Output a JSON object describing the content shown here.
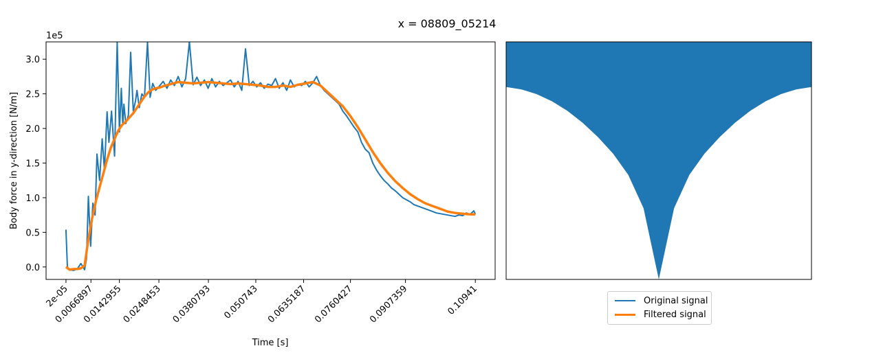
{
  "figure": {
    "title": "x = 08809_05214"
  },
  "chart_data": [
    {
      "type": "line",
      "xlabel": "Time [s]",
      "ylabel": "Body force in y-direction [N/m]",
      "y_scale_note": "1e5",
      "xlim": [
        -0.0053,
        0.1147
      ],
      "ylim": [
        -0.18,
        3.25
      ],
      "x_tick_values": [
        2e-05,
        0.0066897,
        0.0142955,
        0.0248453,
        0.0380793,
        0.050743,
        0.0635187,
        0.0760427,
        0.0907359,
        0.10941
      ],
      "x_tick_labels": [
        "2e-05",
        "0.0066897",
        "0.0142955",
        "0.0248453",
        "0.0380793",
        "0.050743",
        "0.0635187",
        "0.0760427",
        "0.0907359",
        "0.10941"
      ],
      "y_tick_values": [
        0.0,
        0.5,
        1.0,
        1.5,
        2.0,
        2.5,
        3.0
      ],
      "y_tick_labels": [
        "0.0",
        "0.5",
        "1.0",
        "1.5",
        "2.0",
        "2.5",
        "3.0"
      ],
      "grid": false,
      "colors": {
        "original": "#1f77b4",
        "filtered": "#ff7f0e"
      },
      "series": [
        {
          "name": "Original signal",
          "x": [
            2e-05,
            0.0004,
            0.001,
            0.002,
            0.003,
            0.004,
            0.005,
            0.0055,
            0.006,
            0.0066,
            0.0072,
            0.0078,
            0.0083,
            0.009,
            0.0097,
            0.0103,
            0.011,
            0.0115,
            0.0122,
            0.013,
            0.0137,
            0.0143,
            0.0148,
            0.0152,
            0.0155,
            0.016,
            0.0167,
            0.0173,
            0.018,
            0.0186,
            0.019,
            0.0196,
            0.0203,
            0.021,
            0.0218,
            0.0225,
            0.0232,
            0.024,
            0.0248,
            0.026,
            0.027,
            0.028,
            0.029,
            0.03,
            0.031,
            0.032,
            0.033,
            0.034,
            0.035,
            0.036,
            0.037,
            0.038,
            0.039,
            0.04,
            0.041,
            0.042,
            0.043,
            0.044,
            0.045,
            0.046,
            0.047,
            0.048,
            0.049,
            0.05,
            0.051,
            0.052,
            0.053,
            0.054,
            0.055,
            0.056,
            0.057,
            0.058,
            0.059,
            0.06,
            0.061,
            0.062,
            0.063,
            0.064,
            0.065,
            0.066,
            0.067,
            0.068,
            0.069,
            0.07,
            0.071,
            0.072,
            0.073,
            0.074,
            0.075,
            0.076,
            0.077,
            0.078,
            0.079,
            0.08,
            0.081,
            0.082,
            0.083,
            0.084,
            0.085,
            0.086,
            0.087,
            0.088,
            0.089,
            0.09,
            0.091,
            0.092,
            0.093,
            0.094,
            0.095,
            0.096,
            0.097,
            0.098,
            0.099,
            0.1,
            0.101,
            0.102,
            0.103,
            0.104,
            0.105,
            0.106,
            0.107,
            0.108,
            0.109,
            0.1094
          ],
          "values": [
            0.54,
            0.0,
            -0.04,
            -0.05,
            -0.03,
            0.05,
            -0.04,
            0.12,
            1.02,
            0.3,
            0.92,
            0.75,
            1.63,
            1.25,
            1.85,
            1.4,
            2.24,
            1.8,
            2.25,
            1.6,
            3.25,
            1.95,
            2.58,
            2.05,
            2.35,
            2.07,
            2.19,
            3.1,
            2.25,
            2.4,
            2.55,
            2.3,
            2.5,
            2.45,
            3.25,
            2.45,
            2.65,
            2.55,
            2.6,
            2.68,
            2.58,
            2.7,
            2.62,
            2.75,
            2.6,
            2.72,
            3.25,
            2.63,
            2.74,
            2.62,
            2.7,
            2.58,
            2.72,
            2.6,
            2.68,
            2.62,
            2.66,
            2.7,
            2.6,
            2.68,
            2.55,
            3.15,
            2.62,
            2.68,
            2.6,
            2.66,
            2.58,
            2.64,
            2.62,
            2.72,
            2.58,
            2.66,
            2.55,
            2.7,
            2.6,
            2.64,
            2.62,
            2.68,
            2.6,
            2.66,
            2.75,
            2.62,
            2.55,
            2.5,
            2.45,
            2.4,
            2.35,
            2.25,
            2.18,
            2.1,
            2.02,
            1.95,
            1.8,
            1.7,
            1.65,
            1.5,
            1.4,
            1.32,
            1.25,
            1.2,
            1.14,
            1.1,
            1.05,
            1.0,
            0.97,
            0.94,
            0.9,
            0.88,
            0.86,
            0.84,
            0.82,
            0.8,
            0.78,
            0.77,
            0.76,
            0.75,
            0.74,
            0.73,
            0.75,
            0.74,
            0.78,
            0.76,
            0.81,
            0.76
          ]
        },
        {
          "name": "Filtered signal",
          "x": [
            2e-05,
            0.001,
            0.002,
            0.003,
            0.004,
            0.005,
            0.006,
            0.007,
            0.008,
            0.009,
            0.01,
            0.011,
            0.012,
            0.013,
            0.014,
            0.015,
            0.016,
            0.017,
            0.018,
            0.019,
            0.02,
            0.021,
            0.022,
            0.023,
            0.024,
            0.025,
            0.026,
            0.028,
            0.03,
            0.032,
            0.034,
            0.036,
            0.038,
            0.04,
            0.042,
            0.044,
            0.046,
            0.048,
            0.05,
            0.052,
            0.054,
            0.056,
            0.058,
            0.06,
            0.062,
            0.064,
            0.066,
            0.068,
            0.07,
            0.072,
            0.074,
            0.076,
            0.078,
            0.08,
            0.082,
            0.084,
            0.086,
            0.088,
            0.09,
            0.092,
            0.094,
            0.096,
            0.098,
            0.1,
            0.102,
            0.104,
            0.106,
            0.108,
            0.1094
          ],
          "values": [
            0.0,
            -0.04,
            -0.03,
            -0.03,
            -0.02,
            0.02,
            0.4,
            0.7,
            0.95,
            1.15,
            1.35,
            1.55,
            1.72,
            1.85,
            1.97,
            2.05,
            2.1,
            2.16,
            2.22,
            2.3,
            2.38,
            2.46,
            2.52,
            2.56,
            2.58,
            2.59,
            2.61,
            2.64,
            2.67,
            2.66,
            2.65,
            2.66,
            2.67,
            2.66,
            2.65,
            2.64,
            2.65,
            2.64,
            2.63,
            2.62,
            2.6,
            2.6,
            2.62,
            2.6,
            2.63,
            2.65,
            2.67,
            2.62,
            2.52,
            2.42,
            2.32,
            2.18,
            2.02,
            1.84,
            1.66,
            1.5,
            1.36,
            1.24,
            1.14,
            1.05,
            0.98,
            0.92,
            0.88,
            0.84,
            0.8,
            0.78,
            0.77,
            0.76,
            0.76
          ]
        }
      ]
    },
    {
      "type": "area",
      "shape": "v-notch",
      "color": "#1f77b4",
      "xlim": [
        0,
        1
      ],
      "ylim": [
        0,
        1
      ],
      "x": [
        0.0,
        0.05,
        0.1,
        0.15,
        0.2,
        0.25,
        0.3,
        0.35,
        0.4,
        0.45,
        0.5,
        0.55,
        0.6,
        0.65,
        0.7,
        0.75,
        0.8,
        0.85,
        0.9,
        0.95,
        1.0
      ],
      "lower": [
        0.81,
        0.8,
        0.78,
        0.75,
        0.71,
        0.66,
        0.6,
        0.53,
        0.44,
        0.3,
        0.0,
        0.3,
        0.44,
        0.53,
        0.6,
        0.66,
        0.71,
        0.75,
        0.78,
        0.8,
        0.81
      ],
      "upper": [
        1.0,
        1.0,
        1.0,
        1.0,
        1.0,
        1.0,
        1.0,
        1.0,
        1.0,
        1.0,
        1.0,
        1.0,
        1.0,
        1.0,
        1.0,
        1.0,
        1.0,
        1.0,
        1.0,
        1.0,
        1.0
      ],
      "axis_ticks": false
    }
  ],
  "legend": {
    "items": [
      {
        "label": "Original signal",
        "color": "#1f77b4",
        "style": "thin"
      },
      {
        "label": "Filtered signal",
        "color": "#ff7f0e",
        "style": "thick"
      }
    ]
  }
}
